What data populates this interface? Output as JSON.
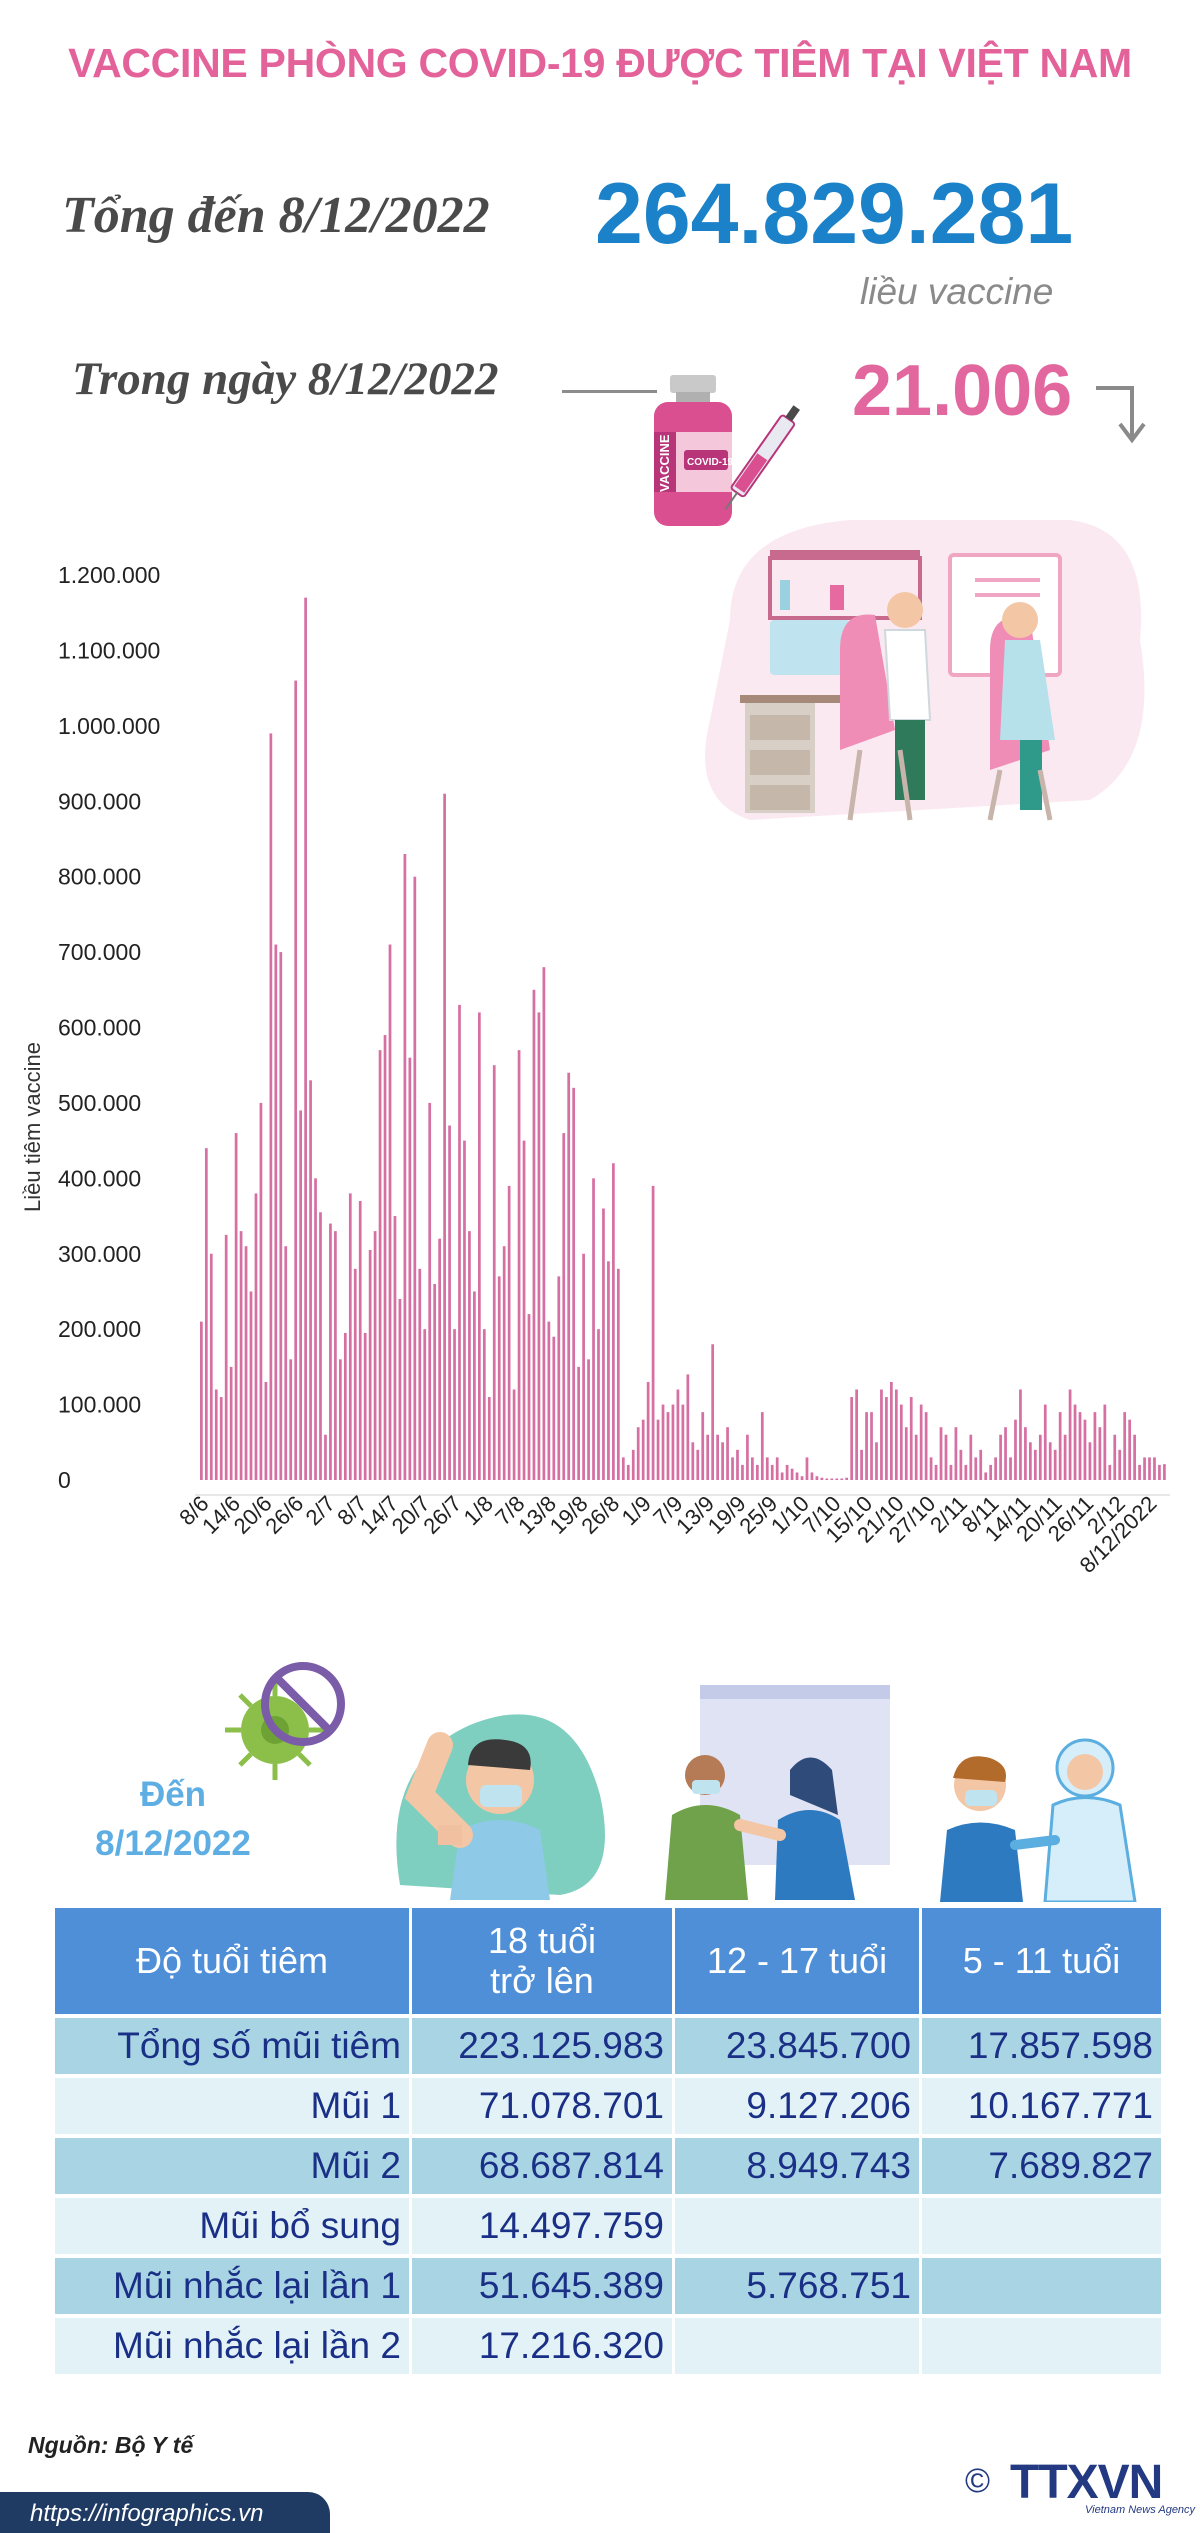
{
  "title": "VACCINE PHÒNG COVID-19 ĐƯỢC TIÊM TẠI VIỆT NAM",
  "summary": {
    "total_label": "Tổng đến 8/12/2022",
    "total_value": "264.829.281",
    "total_unit": "liều vaccine",
    "day_label": "Trong ngày 8/12/2022",
    "day_value": "21.006",
    "vial_text": "VACCINE",
    "vial_label": "COVID-19"
  },
  "chart_data": {
    "type": "bar",
    "ylabel": "Liều tiêm vaccine",
    "ylim": [
      0,
      1200000
    ],
    "ytick_labels": [
      "0",
      "100.000",
      "200.000",
      "300.000",
      "400.000",
      "500.000",
      "600.000",
      "700.000",
      "800.000",
      "900.000",
      "1.000.000",
      "1.100.000",
      "1.200.000"
    ],
    "xtick_labels": [
      "8/6",
      "14/6",
      "20/6",
      "26/6",
      "2/7",
      "8/7",
      "14/7",
      "20/7",
      "26/7",
      "1/8",
      "7/8",
      "13/8",
      "19/8",
      "26/8",
      "1/9",
      "7/9",
      "13/9",
      "19/9",
      "25/9",
      "1/10",
      "7/10",
      "15/10",
      "21/10",
      "27/10",
      "2/11",
      "8/11",
      "14/11",
      "20/11",
      "26/11",
      "2/12",
      "8/12/2022"
    ],
    "color": "#d670a3",
    "values": [
      210000,
      440000,
      300000,
      120000,
      110000,
      325000,
      150000,
      460000,
      330000,
      310000,
      250000,
      380000,
      500000,
      130000,
      990000,
      710000,
      700000,
      310000,
      160000,
      1060000,
      490000,
      1170000,
      530000,
      400000,
      355000,
      60000,
      340000,
      330000,
      160000,
      195000,
      380000,
      280000,
      370000,
      195000,
      305000,
      330000,
      570000,
      590000,
      710000,
      350000,
      240000,
      830000,
      560000,
      800000,
      280000,
      200000,
      500000,
      260000,
      320000,
      910000,
      470000,
      200000,
      630000,
      450000,
      330000,
      250000,
      620000,
      200000,
      110000,
      550000,
      270000,
      310000,
      390000,
      120000,
      570000,
      450000,
      220000,
      650000,
      620000,
      680000,
      210000,
      190000,
      270000,
      460000,
      540000,
      520000,
      150000,
      300000,
      160000,
      400000,
      200000,
      360000,
      290000,
      420000,
      280000,
      30000,
      20000,
      40000,
      70000,
      80000,
      130000,
      390000,
      80000,
      100000,
      90000,
      100000,
      120000,
      100000,
      140000,
      50000,
      40000,
      90000,
      60000,
      180000,
      60000,
      50000,
      70000,
      30000,
      40000,
      20000,
      60000,
      30000,
      20000,
      90000,
      30000,
      20000,
      30000,
      10000,
      20000,
      15000,
      10000,
      5000,
      30000,
      10000,
      5000,
      3000,
      2000,
      2000,
      2000,
      2000,
      3000,
      110000,
      120000,
      40000,
      90000,
      90000,
      50000,
      120000,
      110000,
      130000,
      120000,
      100000,
      70000,
      110000,
      60000,
      100000,
      90000,
      30000,
      20000,
      70000,
      60000,
      20000,
      70000,
      40000,
      20000,
      60000,
      30000,
      40000,
      10000,
      20000,
      30000,
      60000,
      70000,
      30000,
      80000,
      120000,
      70000,
      50000,
      40000,
      60000,
      100000,
      50000,
      40000,
      90000,
      60000,
      120000,
      100000,
      90000,
      80000,
      50000,
      90000,
      70000,
      100000,
      20000,
      60000,
      40000,
      90000,
      80000,
      60000,
      20000,
      30000,
      30000,
      30000,
      20000,
      21006
    ]
  },
  "age_section": {
    "den_label": "Đến",
    "den_date": "8/12/2022"
  },
  "table": {
    "headers": [
      "Độ tuổi tiêm",
      "18 tuổi",
      "trở lên",
      "12 - 17 tuổi",
      "5 - 11 tuổi"
    ],
    "rows": [
      {
        "label": "Tổng số mũi tiêm",
        "values": [
          "223.125.983",
          "23.845.700",
          "17.857.598"
        ]
      },
      {
        "label": "Mũi 1",
        "values": [
          "71.078.701",
          "9.127.206",
          "10.167.771"
        ]
      },
      {
        "label": "Mũi 2",
        "values": [
          "68.687.814",
          "8.949.743",
          "7.689.827"
        ]
      },
      {
        "label": "Mũi bổ sung",
        "values": [
          "14.497.759",
          "",
          ""
        ]
      },
      {
        "label": "Mũi nhắc lại lần 1",
        "values": [
          "51.645.389",
          "5.768.751",
          ""
        ]
      },
      {
        "label": "Mũi nhắc lại lần 2",
        "values": [
          "17.216.320",
          "",
          ""
        ]
      }
    ]
  },
  "footer": {
    "source": "Nguồn: Bộ Y tế",
    "url": "https://infographics.vn",
    "copyright": "©",
    "logo": "TTXVN",
    "logo_sub": "Vietnam News Agency"
  }
}
